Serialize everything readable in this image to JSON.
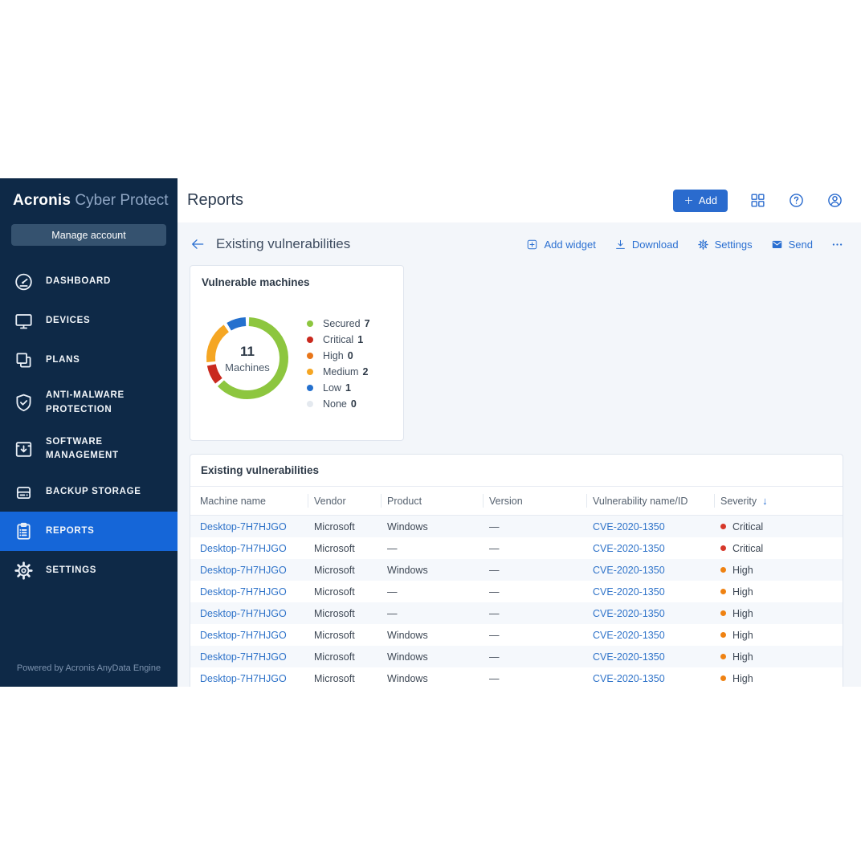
{
  "colors": {
    "sidebar_bg": "#0e2947",
    "active_item_bg": "#1566d8",
    "button_blue": "#2a6bce",
    "link_blue": "#2f73c9",
    "action_blue": "#2a6fd1",
    "content_bg": "#f3f6fa",
    "severity_critical": "#d6382a",
    "severity_high": "#ef8212"
  },
  "sidebar": {
    "logo": {
      "brand": "Acronis",
      "product": " Cyber Protect"
    },
    "manage_account_label": "Manage account",
    "items": [
      {
        "label": "DASHBOARD",
        "icon": "dashboard",
        "active": false
      },
      {
        "label": "DEVICES",
        "icon": "devices",
        "active": false
      },
      {
        "label": "PLANS",
        "icon": "plans",
        "active": false
      },
      {
        "label": "ANTI-MALWARE PROTECTION",
        "icon": "shield",
        "active": false
      },
      {
        "label": "SOFTWARE MANAGEMENT",
        "icon": "software",
        "active": false
      },
      {
        "label": "BACKUP STORAGE",
        "icon": "backup",
        "active": false
      },
      {
        "label": "REPORTS",
        "icon": "reports",
        "active": true
      },
      {
        "label": "SETTINGS",
        "icon": "gear",
        "active": false
      }
    ],
    "footer": "Powered by Acronis AnyData Engine"
  },
  "topbar": {
    "title": "Reports",
    "add_button": {
      "label": "Add",
      "icon": "plus-icon"
    },
    "icon_buttons": [
      {
        "name": "apps-grid-icon",
        "icon": "apps-grid"
      },
      {
        "name": "help-icon",
        "icon": "help"
      },
      {
        "name": "account-icon",
        "icon": "account"
      }
    ]
  },
  "toolbar": {
    "back_icon": "arrow-left",
    "title": "Existing vulnerabilities",
    "actions": [
      {
        "label": "Add widget",
        "icon": "add-widget"
      },
      {
        "label": "Download",
        "icon": "download"
      },
      {
        "label": "Settings",
        "icon": "gear"
      },
      {
        "label": "Send",
        "icon": "envelope"
      },
      {
        "label": "",
        "icon": "more"
      }
    ]
  },
  "widget": {
    "title": "Vulnerable machines"
  },
  "chart_data": {
    "type": "donut",
    "title": "Vulnerable machines",
    "center": {
      "value": "11",
      "label": "Machines"
    },
    "series": [
      {
        "name": "Secured",
        "value": 7,
        "color": "#8dc63f"
      },
      {
        "name": "Critical",
        "value": 1,
        "color": "#c9291e"
      },
      {
        "name": "High",
        "value": 0,
        "color": "#e8761a"
      },
      {
        "name": "Medium",
        "value": 2,
        "color": "#f5a623"
      },
      {
        "name": "Low",
        "value": 1,
        "color": "#2470ce"
      },
      {
        "name": "None",
        "value": 0,
        "color": "#e4e9ef"
      }
    ],
    "total": 11,
    "legend_position": "right"
  },
  "table": {
    "title": "Existing vulnerabilities",
    "columns": [
      "Machine name",
      "Vendor",
      "Product",
      "Version",
      "Vulnerability name/ID",
      "Severity"
    ],
    "sorted_by": "Severity",
    "sort_indicator": "↓",
    "severity_colors": {
      "Critical": "#d6382a",
      "High": "#ef8212"
    },
    "rows": [
      {
        "machine": "Desktop-7H7HJGO",
        "vendor": "Microsoft",
        "product": "Windows",
        "version": "—",
        "cve": "CVE-2020-1350",
        "severity": "Critical"
      },
      {
        "machine": "Desktop-7H7HJGO",
        "vendor": "Microsoft",
        "product": "—",
        "version": "—",
        "cve": "CVE-2020-1350",
        "severity": "Critical"
      },
      {
        "machine": "Desktop-7H7HJGO",
        "vendor": "Microsoft",
        "product": "Windows",
        "version": "—",
        "cve": "CVE-2020-1350",
        "severity": "High"
      },
      {
        "machine": "Desktop-7H7HJGO",
        "vendor": "Microsoft",
        "product": "—",
        "version": "—",
        "cve": "CVE-2020-1350",
        "severity": "High"
      },
      {
        "machine": "Desktop-7H7HJGO",
        "vendor": "Microsoft",
        "product": "—",
        "version": "—",
        "cve": "CVE-2020-1350",
        "severity": "High"
      },
      {
        "machine": "Desktop-7H7HJGO",
        "vendor": "Microsoft",
        "product": "Windows",
        "version": "—",
        "cve": "CVE-2020-1350",
        "severity": "High"
      },
      {
        "machine": "Desktop-7H7HJGO",
        "vendor": "Microsoft",
        "product": "Windows",
        "version": "—",
        "cve": "CVE-2020-1350",
        "severity": "High"
      },
      {
        "machine": "Desktop-7H7HJGO",
        "vendor": "Microsoft",
        "product": "Windows",
        "version": "—",
        "cve": "CVE-2020-1350",
        "severity": "High"
      }
    ]
  }
}
